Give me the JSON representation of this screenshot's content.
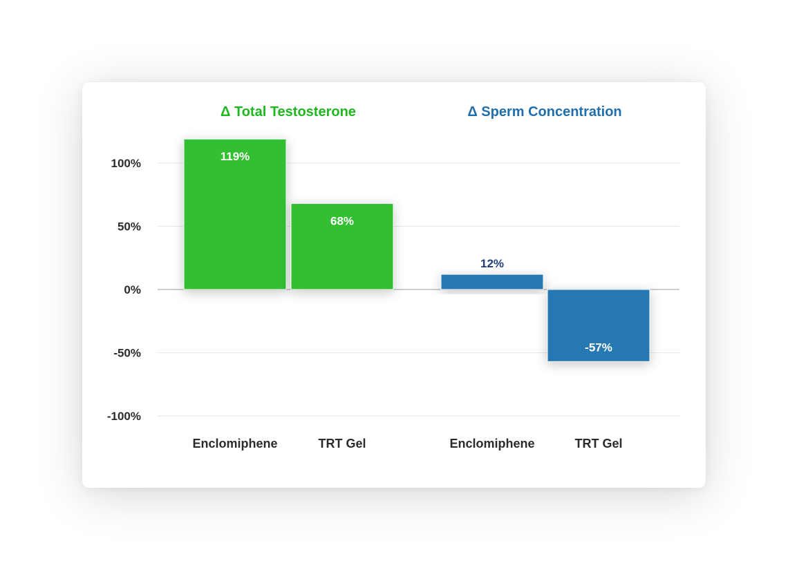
{
  "colors": {
    "testosterone": "#33bf33",
    "sperm": "#2878b0",
    "testosterone_title": "#1eb81e",
    "sperm_title": "#1f6fad",
    "label_inside": "#ffffff",
    "label_outside": "#1f3f7a",
    "grid": "#e6e6e6",
    "zero_line": "#bdbdbd"
  },
  "chart_data": {
    "type": "bar",
    "ylim": [
      -100,
      119
    ],
    "yticks": [
      100,
      50,
      0,
      -50,
      -100
    ],
    "ytick_labels": [
      "100%",
      "50%",
      "0%",
      "-50%",
      "-100%"
    ],
    "grid": true,
    "groups": [
      {
        "title": "Δ Total Testosterone",
        "color_key": "testosterone",
        "categories": [
          "Enclomiphene",
          "TRT Gel"
        ],
        "values": [
          119,
          68
        ],
        "labels": [
          "119%",
          "68%"
        ]
      },
      {
        "title": "Δ Sperm Concentration",
        "color_key": "sperm",
        "categories": [
          "Enclomiphene",
          "TRT Gel"
        ],
        "values": [
          12,
          -57
        ],
        "labels": [
          "12%",
          "-57%"
        ]
      }
    ]
  }
}
